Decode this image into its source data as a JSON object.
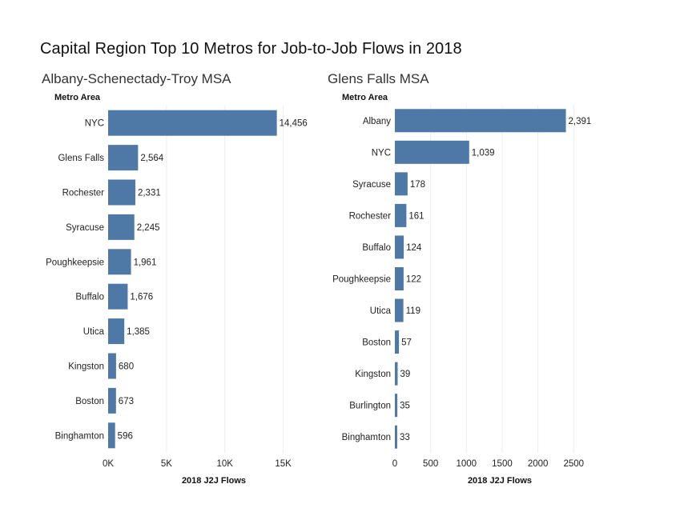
{
  "title": "Capital Region Top 10 Metros for Job-to-Job Flows in 2018",
  "chart_data": [
    {
      "type": "bar",
      "orientation": "horizontal",
      "title": "Albany-Schenectady-Troy MSA",
      "ylabel": "Metro Area",
      "xlabel": "2018 J2J Flows",
      "categories": [
        "NYC",
        "Glens Falls",
        "Rochester",
        "Syracuse",
        "Poughkeepsie",
        "Buffalo",
        "Utica",
        "Kingston",
        "Boston",
        "Binghamton"
      ],
      "values": [
        14456,
        2564,
        2331,
        2245,
        1961,
        1676,
        1385,
        680,
        673,
        596
      ],
      "value_labels": [
        "14,456",
        "2,564",
        "2,331",
        "2,245",
        "1,961",
        "1,676",
        "1,385",
        "680",
        "673",
        "596"
      ],
      "xticks": [
        0,
        5000,
        10000,
        15000
      ],
      "xtick_labels": [
        "0K",
        "5K",
        "10K",
        "15K"
      ],
      "xlim": [
        0,
        17500
      ],
      "bar_color": "#4e79a7",
      "gridlines": true
    },
    {
      "type": "bar",
      "orientation": "horizontal",
      "title": "Glens Falls MSA",
      "ylabel": "Metro Area",
      "xlabel": "2018 J2J Flows",
      "categories": [
        "Albany",
        "NYC",
        "Syracuse",
        "Rochester",
        "Buffalo",
        "Poughkeepsie",
        "Utica",
        "Boston",
        "Kingston",
        "Burlington",
        "Binghamton"
      ],
      "values": [
        2391,
        1039,
        178,
        161,
        124,
        122,
        119,
        57,
        39,
        35,
        33
      ],
      "value_labels": [
        "2,391",
        "1,039",
        "178",
        "161",
        "124",
        "122",
        "119",
        "57",
        "39",
        "35",
        "33"
      ],
      "xticks": [
        0,
        500,
        1000,
        1500,
        2000,
        2500
      ],
      "xtick_labels": [
        "0",
        "500",
        "1000",
        "1500",
        "2000",
        "2500"
      ],
      "xlim": [
        0,
        2900
      ],
      "bar_color": "#4e79a7",
      "gridlines": true
    }
  ]
}
